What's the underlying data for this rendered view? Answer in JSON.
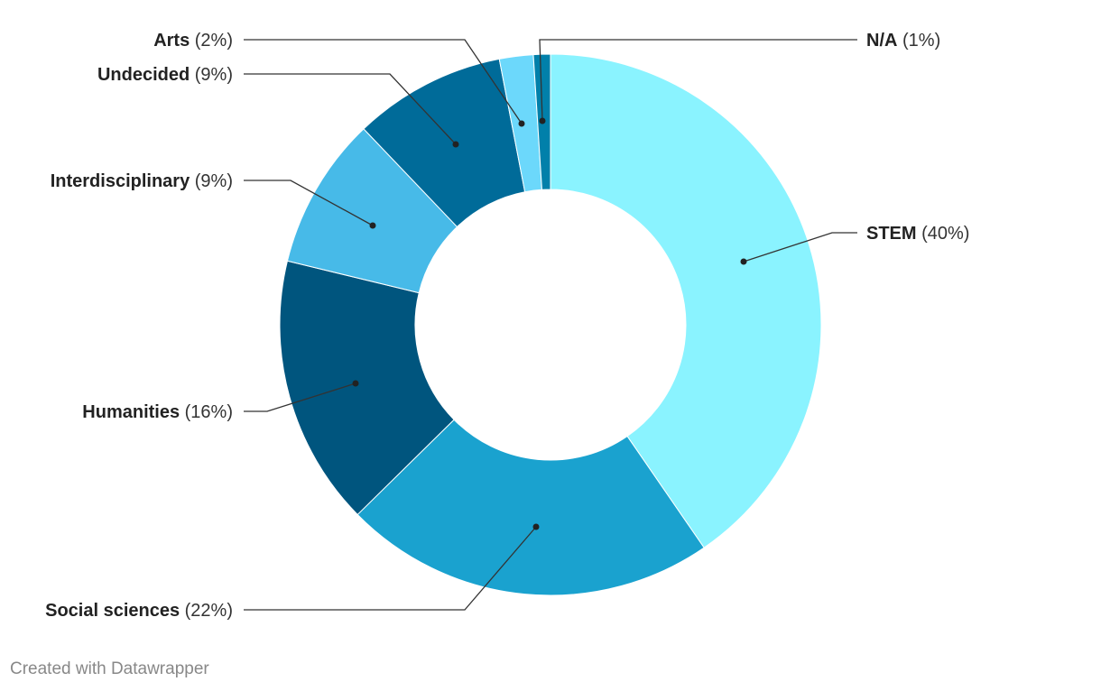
{
  "chart_data": {
    "type": "pie",
    "variant": "donut",
    "title": "",
    "slices": [
      {
        "label": "STEM",
        "value": 40,
        "color": "#8AF3FF",
        "display": "(40%)"
      },
      {
        "label": "Social sciences",
        "value": 22,
        "color": "#1AA2CF",
        "display": "(22%)"
      },
      {
        "label": "Humanities",
        "value": 16,
        "color": "#00557E",
        "display": "(16%)"
      },
      {
        "label": "Interdisciplinary",
        "value": 9,
        "color": "#47BAE8",
        "display": "(9%)"
      },
      {
        "label": "Undecided",
        "value": 9,
        "color": "#006B99",
        "display": "(9%)"
      },
      {
        "label": "Arts",
        "value": 2,
        "color": "#6CD8FB",
        "display": "(2%)"
      },
      {
        "label": "N/A",
        "value": 1,
        "color": "#0180AA",
        "display": "(1%)"
      }
    ]
  },
  "footer": "Created with Datawrapper"
}
